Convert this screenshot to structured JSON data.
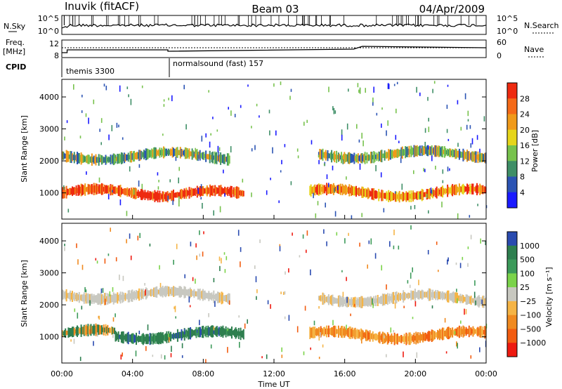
{
  "header": {
    "radar": "Inuvik (fitACF)",
    "beam": "Beam 03",
    "date": "04/Apr/2009"
  },
  "top_panel": {
    "left_label": "N.Sky",
    "right_label": "N.Search",
    "left_ticks": [
      "10^5",
      "10^0"
    ],
    "right_ticks": [
      "10^5",
      "10^0"
    ]
  },
  "freq_panel": {
    "left_label": "Freq.",
    "left_unit": "[MHz]",
    "right_label": "Nave",
    "left_ticks": [
      "12",
      "8"
    ],
    "right_ticks": [
      "60",
      "0"
    ]
  },
  "cpid_panel": {
    "label": "CPID",
    "modes": [
      {
        "name": "themis 3300",
        "start_hour": 0
      },
      {
        "name": "normalsound (fast) 157",
        "start_hour": 6.0
      }
    ]
  },
  "x_axis": {
    "label": "Time UT",
    "ticks": [
      "00:00",
      "04:00",
      "08:00",
      "12:00",
      "16:00",
      "20:00",
      "00:00"
    ],
    "tick_hours": [
      0,
      4,
      8,
      12,
      16,
      20,
      24
    ]
  },
  "chart_data": [
    {
      "type": "heatmap",
      "name": "power",
      "xlabel": "Time UT",
      "ylabel": "Slant Range [km]",
      "xlim_hours": [
        0,
        24
      ],
      "ylim_km": [
        180,
        4550
      ],
      "yticks": [
        "1000",
        "2000",
        "3000",
        "4000"
      ],
      "ytick_values": [
        1000,
        2000,
        3000,
        4000
      ],
      "colorbar": {
        "label": "Power [dB]",
        "ticks": [
          "4",
          "8",
          "12",
          "16",
          "20",
          "24",
          "28"
        ],
        "colors": [
          "#1a1aff",
          "#2b54b4",
          "#3f8f67",
          "#77c24c",
          "#e6d51a",
          "#f09a1a",
          "#f56a18",
          "#ee2a10"
        ]
      },
      "bands": [
        {
          "range_km": 1000,
          "from_hour": 0.0,
          "to_hour": 6.0,
          "level": "high"
        },
        {
          "range_km": 950,
          "from_hour": 6.0,
          "to_hour": 10.3,
          "level": "high"
        },
        {
          "range_km": 1000,
          "from_hour": 14.0,
          "to_hour": 24.0,
          "level": "medium-high"
        },
        {
          "range_km": 2150,
          "from_hour": 0.0,
          "to_hour": 9.5,
          "level": "medium"
        },
        {
          "range_km": 2200,
          "from_hour": 14.5,
          "to_hour": 24.0,
          "level": "medium"
        }
      ]
    },
    {
      "type": "heatmap",
      "name": "velocity",
      "xlabel": "Time UT",
      "ylabel": "Slant Range [km]",
      "xlim_hours": [
        0,
        24
      ],
      "ylim_km": [
        180,
        4550
      ],
      "yticks": [
        "1000",
        "2000",
        "3000",
        "4000"
      ],
      "ytick_values": [
        1000,
        2000,
        3000,
        4000
      ],
      "colorbar": {
        "label": "Velocity [m s⁻¹]",
        "ticks": [
          "1000",
          "500",
          "100",
          "25",
          "−25",
          "−100",
          "−500",
          "−1000"
        ],
        "colors": [
          "#2a4bb0",
          "#2e7f4f",
          "#3c9a5a",
          "#7bd34a",
          "#c8c8c0",
          "#f5b445",
          "#f08a20",
          "#f25c10",
          "#ee1a10"
        ]
      },
      "bands": [
        {
          "range_km": 1100,
          "from_hour": 0.0,
          "to_hour": 3.0,
          "level": "toward"
        },
        {
          "range_km": 1050,
          "from_hour": 3.0,
          "to_hour": 10.3,
          "level": "strong-toward"
        },
        {
          "range_km": 1050,
          "from_hour": 14.0,
          "to_hour": 24.0,
          "level": "away"
        },
        {
          "range_km": 2300,
          "from_hour": 0.0,
          "to_hour": 9.5,
          "level": "near-zero"
        },
        {
          "range_km": 2200,
          "from_hour": 14.5,
          "to_hour": 24.0,
          "level": "near-zero"
        }
      ]
    }
  ]
}
